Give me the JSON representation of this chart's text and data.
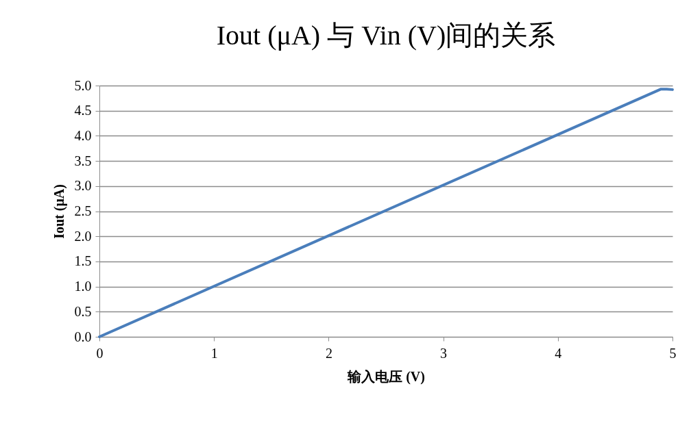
{
  "chart_data": {
    "type": "line",
    "title": "Iout (μA) 与 Vin (V)间的关系",
    "xlabel": "输入电压 (V)",
    "ylabel": "Iout (μA)",
    "x": [
      0,
      4.9,
      4.95,
      5
    ],
    "series": [
      {
        "color": "#4a7ebb",
        "values": [
          0,
          4.93,
          4.93,
          4.92
        ]
      }
    ],
    "xlim": [
      0,
      5
    ],
    "xticks": [
      0,
      1,
      2,
      3,
      4,
      5
    ],
    "ylim": [
      0,
      5
    ],
    "yticks": [
      {
        "value": 0,
        "label": "0.0"
      },
      {
        "value": 0.5,
        "label": "0.5"
      },
      {
        "value": 1,
        "label": "1.0"
      },
      {
        "value": 1.5,
        "label": "1.5"
      },
      {
        "value": 2,
        "label": "2.0"
      },
      {
        "value": 2.5,
        "label": "2.5"
      },
      {
        "value": 3,
        "label": "3.0"
      },
      {
        "value": 3.5,
        "label": "3.5"
      },
      {
        "value": 4,
        "label": "4.0"
      },
      {
        "value": 4.5,
        "label": "4.5"
      },
      {
        "value": 5,
        "label": "5.0"
      }
    ],
    "grid": "y",
    "legend": false,
    "marker": "none",
    "line_style": "solid"
  }
}
